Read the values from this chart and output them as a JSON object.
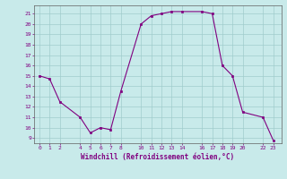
{
  "x": [
    0,
    1,
    2,
    4,
    5,
    6,
    7,
    8,
    10,
    11,
    12,
    13,
    14,
    16,
    17,
    18,
    19,
    20,
    22,
    23
  ],
  "y": [
    15,
    14.7,
    12.5,
    11,
    9.5,
    10,
    9.8,
    13.5,
    20,
    20.8,
    21,
    21.2,
    21.2,
    21.2,
    21,
    16,
    15,
    11.5,
    11,
    8.8
  ],
  "line_color": "#800080",
  "marker_color": "#800080",
  "bg_color": "#c8eaea",
  "grid_color": "#a0cccc",
  "xlabel": "Windchill (Refroidissement éolien,°C)",
  "xlabel_color": "#800080",
  "ylabel_color": "#800080",
  "yticks": [
    9,
    10,
    11,
    12,
    13,
    14,
    15,
    16,
    17,
    18,
    19,
    20,
    21
  ],
  "xticks": [
    0,
    1,
    2,
    4,
    5,
    6,
    7,
    8,
    10,
    11,
    12,
    13,
    14,
    16,
    17,
    18,
    19,
    20,
    22,
    23
  ],
  "ylim": [
    8.5,
    21.8
  ],
  "xlim": [
    -0.5,
    23.8
  ]
}
